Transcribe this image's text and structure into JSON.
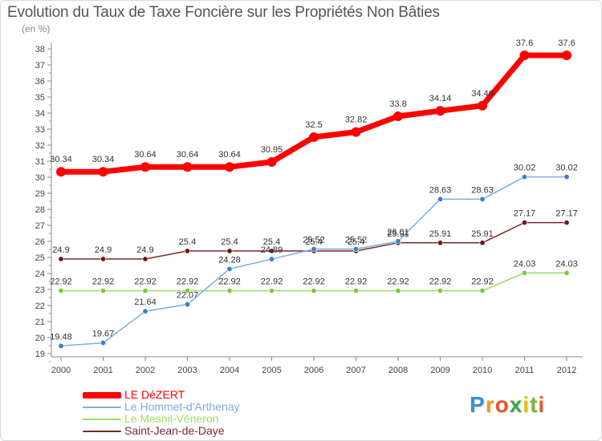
{
  "header": {
    "title": "Evolution du Taux de Taxe Foncière sur les Propriétés Non Bâties",
    "unit": "(en %)"
  },
  "logo": {
    "letters": [
      "P",
      "r",
      "o",
      "x",
      "i",
      "t",
      "i"
    ]
  },
  "chart_data": {
    "type": "line",
    "title": "Evolution du Taux de Taxe Foncière sur les Propriétés Non Bâties",
    "ylabel": "(en %)",
    "xlabel": "",
    "ylim": [
      19,
      38
    ],
    "grid": false,
    "legend_position": "bottom-left",
    "categories": [
      "2000",
      "2001",
      "2002",
      "2003",
      "2004",
      "2005",
      "2006",
      "2007",
      "2008",
      "2009",
      "2010",
      "2011",
      "2012"
    ],
    "yticks": [
      19,
      20,
      21,
      22,
      23,
      24,
      25,
      26,
      27,
      28,
      29,
      30,
      31,
      32,
      33,
      34,
      35,
      36,
      37,
      38
    ],
    "series": [
      {
        "name": "LE DéZERT",
        "color": "#ff0000",
        "values": [
          30.34,
          30.34,
          30.64,
          30.64,
          30.64,
          30.95,
          32.5,
          32.82,
          33.8,
          34.14,
          34.46,
          37.6,
          37.6
        ],
        "labels": [
          "30.34",
          "30.34",
          "30.64",
          "30.64",
          "30.64",
          "30.95",
          "32.5",
          "32.82",
          "33.8",
          "34.14",
          "34.46",
          "37.6",
          "37.6"
        ]
      },
      {
        "name": "Le Hommet-d'Arthenay",
        "color": "#7aaee0",
        "values": [
          19.48,
          19.67,
          21.64,
          22.07,
          24.28,
          24.89,
          25.52,
          25.52,
          26.01,
          28.63,
          28.63,
          30.02,
          30.02
        ],
        "labels": [
          "19.48",
          "19.67",
          "21.64",
          "22.07",
          "24.28",
          "24.89",
          "25.52",
          "25.52",
          "26.01",
          "28.63",
          "28.63",
          "30.02",
          "30.02"
        ]
      },
      {
        "name": "Le Mesnil-Véneron",
        "color": "#99dd66",
        "values": [
          22.92,
          22.92,
          22.92,
          22.92,
          22.92,
          22.92,
          22.92,
          22.92,
          22.92,
          22.92,
          22.92,
          24.03,
          24.03
        ],
        "labels": [
          "22.92",
          "22.92",
          "22.92",
          "22.92",
          "22.92",
          "22.92",
          "22.92",
          "22.92",
          "22.92",
          "22.92",
          "22.92",
          "24.03",
          "24.03"
        ]
      },
      {
        "name": "Saint-Jean-de-Daye",
        "color": "#7a2a2a",
        "values": [
          24.9,
          24.9,
          24.9,
          25.4,
          25.4,
          25.4,
          25.4,
          25.4,
          25.91,
          25.91,
          25.91,
          27.17,
          27.17
        ],
        "labels": [
          "24.9",
          "24.9",
          "24.9",
          "25.4",
          "25.4",
          "25.4",
          "25.4",
          "25.4",
          "25.91",
          "25.91",
          "25.91",
          "27.17",
          "27.17"
        ]
      }
    ]
  }
}
